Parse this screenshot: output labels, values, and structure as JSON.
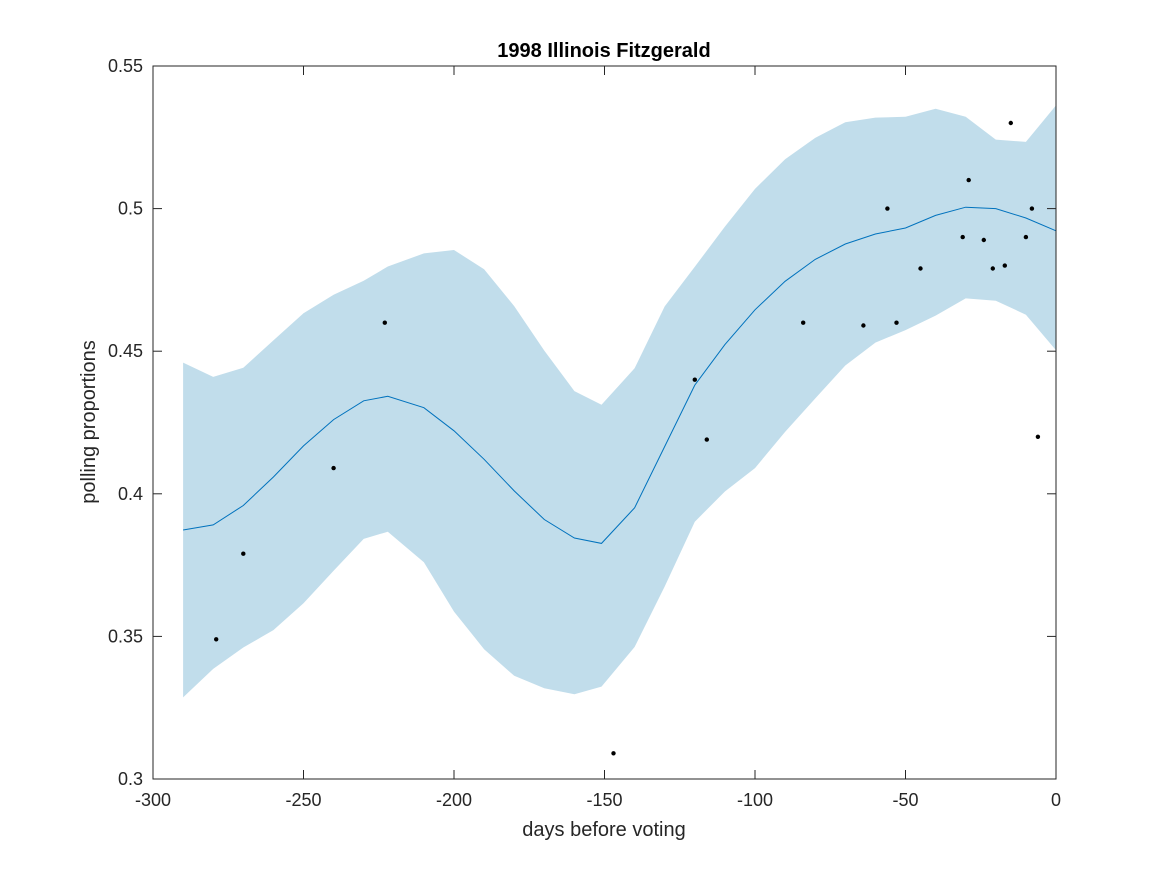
{
  "chart_data": {
    "type": "line",
    "title": "1998 Illinois Fitzgerald",
    "xlabel": "days before voting",
    "ylabel": "polling proportions",
    "xlim": [
      -300,
      0
    ],
    "ylim": [
      0.3,
      0.55
    ],
    "xticks": [
      -300,
      -250,
      -200,
      -150,
      -100,
      -50,
      0
    ],
    "xtick_labels": [
      "-300",
      "-250",
      "-200",
      "-150",
      "-100",
      "-50",
      "0"
    ],
    "yticks": [
      0.3,
      0.35,
      0.4,
      0.45,
      0.5,
      0.55
    ],
    "ytick_labels": [
      "0.3",
      "0.35",
      "0.4",
      "0.45",
      "0.5",
      "0.55"
    ],
    "grid": false,
    "legend": "none",
    "colors": {
      "line": "#0072BD",
      "band": "#C1DDEB",
      "points": "#000000"
    },
    "fit": {
      "x": [
        -290,
        -280,
        -270,
        -260,
        -250,
        -240,
        -230,
        -222,
        -210,
        -200,
        -190,
        -180,
        -170,
        -160,
        -151,
        -140,
        -130,
        -120,
        -110,
        -100,
        -90,
        -80,
        -70,
        -60,
        -50,
        -40,
        -30,
        -20,
        -10,
        0
      ],
      "mean": [
        0.3873,
        0.3891,
        0.3959,
        0.4059,
        0.4168,
        0.426,
        0.4326,
        0.4342,
        0.4302,
        0.4221,
        0.4121,
        0.401,
        0.391,
        0.3845,
        0.3826,
        0.3951,
        0.4166,
        0.4381,
        0.4523,
        0.4645,
        0.4745,
        0.4822,
        0.4876,
        0.4911,
        0.4932,
        0.4976,
        0.5005,
        0.5,
        0.4967,
        0.4922
      ],
      "upper": [
        0.446,
        0.441,
        0.4442,
        0.4538,
        0.4633,
        0.4698,
        0.4747,
        0.4797,
        0.4843,
        0.4855,
        0.4787,
        0.4658,
        0.4502,
        0.436,
        0.4312,
        0.444,
        0.4657,
        0.4796,
        0.4937,
        0.5069,
        0.5173,
        0.5248,
        0.5303,
        0.5319,
        0.5322,
        0.535,
        0.5322,
        0.5242,
        0.5234,
        0.5362
      ],
      "lower": [
        0.3286,
        0.3386,
        0.3461,
        0.3522,
        0.3616,
        0.373,
        0.3842,
        0.3867,
        0.376,
        0.3587,
        0.3455,
        0.3362,
        0.3318,
        0.3297,
        0.3324,
        0.3463,
        0.3675,
        0.3902,
        0.4008,
        0.409,
        0.4217,
        0.4334,
        0.445,
        0.453,
        0.4574,
        0.4625,
        0.4685,
        0.4677,
        0.4628,
        0.4503
      ]
    },
    "points": [
      {
        "x": -279,
        "y": 0.349
      },
      {
        "x": -270,
        "y": 0.379
      },
      {
        "x": -240,
        "y": 0.409
      },
      {
        "x": -223,
        "y": 0.46
      },
      {
        "x": -147,
        "y": 0.309
      },
      {
        "x": -120,
        "y": 0.44
      },
      {
        "x": -116,
        "y": 0.419
      },
      {
        "x": -84,
        "y": 0.46
      },
      {
        "x": -64,
        "y": 0.459
      },
      {
        "x": -56,
        "y": 0.5
      },
      {
        "x": -53,
        "y": 0.46
      },
      {
        "x": -45,
        "y": 0.479
      },
      {
        "x": -31,
        "y": 0.49
      },
      {
        "x": -29,
        "y": 0.51
      },
      {
        "x": -24,
        "y": 0.489
      },
      {
        "x": -21,
        "y": 0.479
      },
      {
        "x": -17,
        "y": 0.48
      },
      {
        "x": -15,
        "y": 0.53
      },
      {
        "x": -10,
        "y": 0.49
      },
      {
        "x": -8,
        "y": 0.5
      },
      {
        "x": -6,
        "y": 0.42
      }
    ]
  }
}
